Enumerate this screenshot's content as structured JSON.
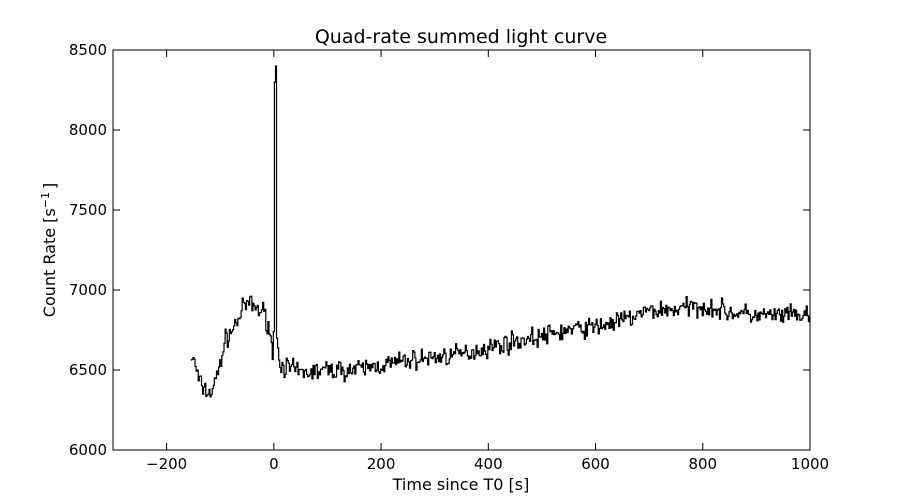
{
  "chart_data": {
    "type": "line",
    "title": "Quad-rate summed light curve",
    "xlabel": "Time since T0 [s]",
    "ylabel_main": "Count Rate [s",
    "ylabel_sup": "−1",
    "ylabel_close": "]",
    "xlim": [
      -300,
      1000
    ],
    "ylim": [
      6000,
      8500
    ],
    "xticks": [
      -200,
      0,
      200,
      400,
      600,
      800,
      1000
    ],
    "xtick_labels": [
      "−200",
      "0",
      "200",
      "400",
      "600",
      "800",
      "1000"
    ],
    "yticks": [
      6000,
      6500,
      7000,
      7500,
      8000,
      8500
    ],
    "ytick_labels": [
      "6000",
      "6500",
      "7000",
      "7500",
      "8000",
      "8500"
    ],
    "grid": false,
    "line_color": "#000000",
    "series": [
      {
        "x_start": -155,
        "x_step": 2,
        "anchors": [
          [
            -155,
            6580
          ],
          [
            -148,
            6540
          ],
          [
            -140,
            6420
          ],
          [
            -130,
            6380
          ],
          [
            -120,
            6350
          ],
          [
            -110,
            6420
          ],
          [
            -100,
            6560
          ],
          [
            -90,
            6700
          ],
          [
            -80,
            6740
          ],
          [
            -70,
            6800
          ],
          [
            -60,
            6870
          ],
          [
            -50,
            6920
          ],
          [
            -40,
            6900
          ],
          [
            -30,
            6880
          ],
          [
            -20,
            6860
          ],
          [
            -10,
            6780
          ],
          [
            -5,
            6650
          ],
          [
            -2,
            6580
          ],
          [
            0,
            6900
          ],
          [
            1,
            8300
          ],
          [
            2,
            8480
          ],
          [
            3,
            8400
          ],
          [
            4,
            7800
          ],
          [
            5,
            6700
          ],
          [
            8,
            6560
          ],
          [
            20,
            6520
          ],
          [
            50,
            6480
          ],
          [
            100,
            6500
          ],
          [
            150,
            6500
          ],
          [
            200,
            6530
          ],
          [
            250,
            6560
          ],
          [
            300,
            6580
          ],
          [
            350,
            6600
          ],
          [
            400,
            6640
          ],
          [
            450,
            6680
          ],
          [
            500,
            6710
          ],
          [
            550,
            6750
          ],
          [
            600,
            6770
          ],
          [
            650,
            6810
          ],
          [
            700,
            6870
          ],
          [
            750,
            6880
          ],
          [
            800,
            6900
          ],
          [
            850,
            6860
          ],
          [
            900,
            6840
          ],
          [
            950,
            6840
          ],
          [
            1000,
            6840
          ]
        ],
        "noise": 90,
        "seed": 7
      }
    ]
  }
}
